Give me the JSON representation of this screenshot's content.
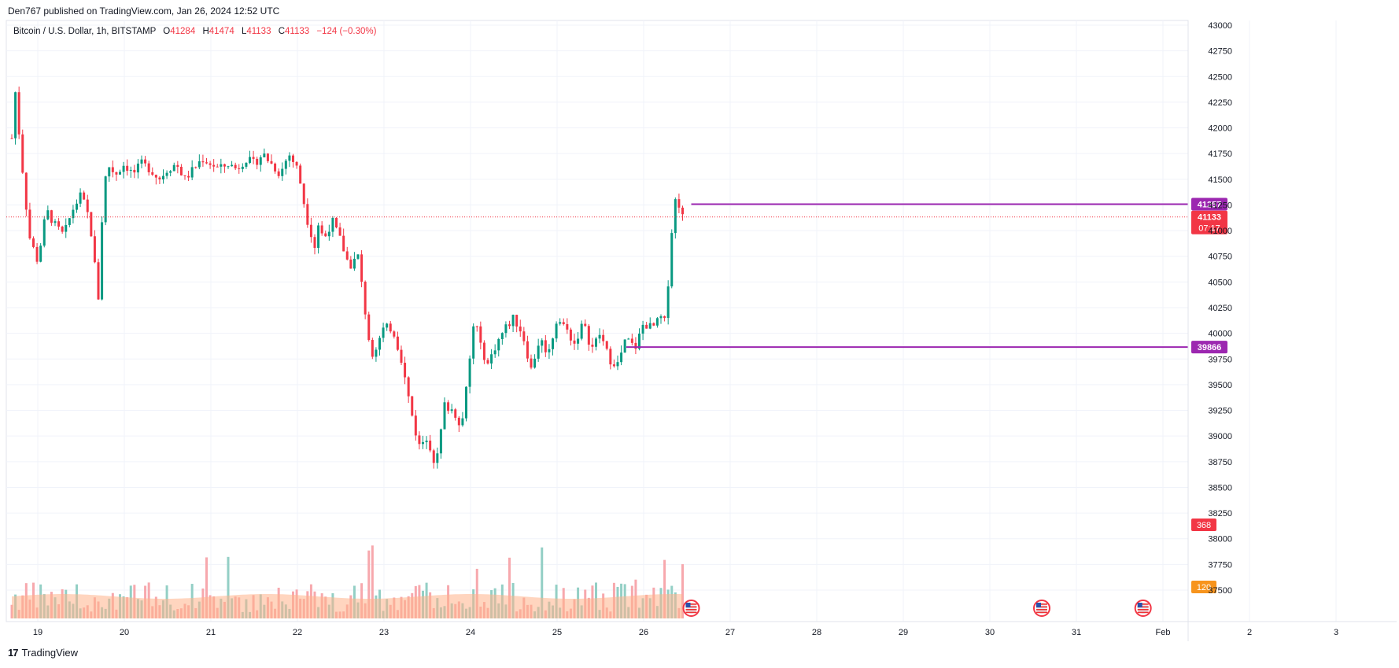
{
  "header": {
    "publisher_text": "Den767 published on TradingView.com, Jan 26, 2024 12:52 UTC"
  },
  "legend": {
    "symbol": "Bitcoin / U.S. Dollar, 1h, BITSTAMP",
    "open_label": "O",
    "open": "41284",
    "high_label": "H",
    "high": "41474",
    "low_label": "L",
    "low": "41133",
    "close_label": "C",
    "close": "41133",
    "change": "−124 (−0.30%)"
  },
  "footer": {
    "brand": "TradingView",
    "logo_icon": "tradingview-logo-icon"
  },
  "colors": {
    "up": "#089981",
    "down": "#f23645",
    "vol_up": "#93cfc5",
    "vol_down": "#f7a8ad",
    "level": "#9c27b0",
    "volume_ma": "#ffb38a",
    "volume_ma_label": "#f7941d",
    "grid": "#f0f3fa"
  },
  "chart_data": {
    "type": "candlestick",
    "price_axis": {
      "ylim": [
        37400,
        43050
      ],
      "ticks": [
        37500,
        37750,
        38000,
        38250,
        38500,
        38750,
        39000,
        39250,
        39500,
        39750,
        40000,
        40250,
        40500,
        40750,
        41000,
        41250,
        41500,
        41750,
        42000,
        42250,
        42500,
        42750,
        43000
      ]
    },
    "time_axis": {
      "labels": [
        "19",
        "20",
        "21",
        "22",
        "23",
        "24",
        "25",
        "26",
        "27",
        "28",
        "29",
        "30",
        "31",
        "Feb",
        "2",
        "3"
      ],
      "units": "days (Jan 2024)"
    },
    "levels": [
      {
        "value": 41257,
        "label": "41257",
        "start_day": 26.55
      },
      {
        "value": 39866,
        "label": "39866",
        "start_day": 25.8
      }
    ],
    "last_price": {
      "value": 41133,
      "label": "41133",
      "countdown": "07:17"
    },
    "volume": {
      "last_label": "368",
      "ma_label": "120"
    },
    "events": [
      {
        "day": 26.55,
        "icon": "us-flag-icon"
      },
      {
        "day": 30.6,
        "icon": "us-flag-icon"
      },
      {
        "day": 31.77,
        "icon": "us-flag-icon"
      }
    ],
    "price_anchors": [
      [
        18.7,
        41900
      ],
      [
        18.72,
        42550
      ],
      [
        18.8,
        41800
      ],
      [
        18.9,
        40950
      ],
      [
        19.0,
        40700
      ],
      [
        19.1,
        41200
      ],
      [
        19.2,
        41050
      ],
      [
        19.3,
        40950
      ],
      [
        19.4,
        41200
      ],
      [
        19.5,
        41350
      ],
      [
        19.6,
        41100
      ],
      [
        19.7,
        40350
      ],
      [
        19.75,
        41250
      ],
      [
        19.8,
        41650
      ],
      [
        19.9,
        41550
      ],
      [
        20.0,
        41650
      ],
      [
        20.1,
        41550
      ],
      [
        20.2,
        41650
      ],
      [
        20.3,
        41600
      ],
      [
        20.4,
        41500
      ],
      [
        20.5,
        41600
      ],
      [
        20.6,
        41650
      ],
      [
        20.7,
        41500
      ],
      [
        20.8,
        41600
      ],
      [
        20.9,
        41700
      ],
      [
        21.0,
        41650
      ],
      [
        21.1,
        41600
      ],
      [
        21.2,
        41650
      ],
      [
        21.3,
        41600
      ],
      [
        21.4,
        41700
      ],
      [
        21.5,
        41650
      ],
      [
        21.6,
        41750
      ],
      [
        21.7,
        41650
      ],
      [
        21.8,
        41550
      ],
      [
        21.9,
        41750
      ],
      [
        22.0,
        41600
      ],
      [
        22.05,
        41400
      ],
      [
        22.1,
        41150
      ],
      [
        22.2,
        40850
      ],
      [
        22.25,
        41100
      ],
      [
        22.3,
        40900
      ],
      [
        22.4,
        41100
      ],
      [
        22.5,
        40900
      ],
      [
        22.6,
        40650
      ],
      [
        22.7,
        40750
      ],
      [
        22.8,
        40100
      ],
      [
        22.85,
        39800
      ],
      [
        22.9,
        39850
      ],
      [
        23.0,
        40050
      ],
      [
        23.1,
        40050
      ],
      [
        23.2,
        39750
      ],
      [
        23.3,
        39300
      ],
      [
        23.4,
        38900
      ],
      [
        23.5,
        39000
      ],
      [
        23.6,
        38700
      ],
      [
        23.7,
        39300
      ],
      [
        23.8,
        39250
      ],
      [
        23.9,
        39100
      ],
      [
        24.0,
        39800
      ],
      [
        24.05,
        40200
      ],
      [
        24.1,
        39900
      ],
      [
        24.2,
        39700
      ],
      [
        24.3,
        39900
      ],
      [
        24.4,
        40050
      ],
      [
        24.5,
        40150
      ],
      [
        24.6,
        40000
      ],
      [
        24.7,
        39650
      ],
      [
        24.8,
        39950
      ],
      [
        24.9,
        39800
      ],
      [
        25.0,
        40150
      ],
      [
        25.1,
        40050
      ],
      [
        25.2,
        39900
      ],
      [
        25.3,
        40100
      ],
      [
        25.4,
        39850
      ],
      [
        25.5,
        40000
      ],
      [
        25.6,
        39750
      ],
      [
        25.7,
        39700
      ],
      [
        25.8,
        39950
      ],
      [
        25.9,
        39850
      ],
      [
        26.0,
        40100
      ],
      [
        26.1,
        40050
      ],
      [
        26.2,
        40150
      ],
      [
        26.25,
        40100
      ],
      [
        26.3,
        40700
      ],
      [
        26.35,
        41300
      ],
      [
        26.4,
        41284
      ],
      [
        26.45,
        41133
      ]
    ]
  }
}
